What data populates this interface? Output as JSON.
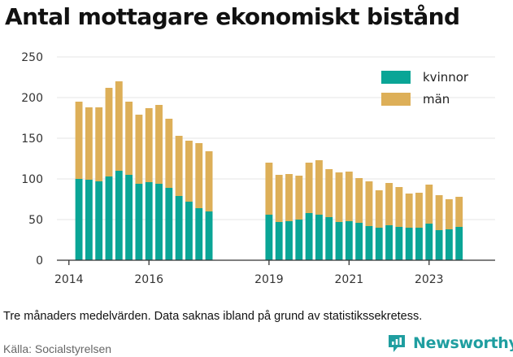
{
  "title": "Antal mottagare ekonomiskt bistånd",
  "note": "Tre månaders medelvärden. Data saknas ibland på grund av statistikssekretess.",
  "source": "Källa: Socialstyrelsen",
  "brand": "Newsworthy",
  "colors": {
    "kvinnor": "#0aa596",
    "man": "#ddaf58",
    "grid": "#e6e6e6",
    "axis": "#333333",
    "brand": "#1f9ea0"
  },
  "chart_data": {
    "type": "bar",
    "stacked": true,
    "x_tick_labels": [
      "2014",
      "2016",
      "2019",
      "2021",
      "2023"
    ],
    "x_tick_positions": [
      2014,
      2016,
      2019,
      2021,
      2023
    ],
    "y_ticks": [
      0,
      50,
      100,
      150,
      200,
      250
    ],
    "ylim": [
      0,
      250
    ],
    "xlim": [
      2013.7,
      2024.65
    ],
    "grid": true,
    "legend_position": "top-right",
    "series": [
      {
        "name": "kvinnor",
        "color": "#0aa596",
        "values": [
          100,
          99,
          97,
          103,
          110,
          105,
          94,
          96,
          94,
          89,
          79,
          72,
          64,
          60,
          56,
          47,
          48,
          50,
          58,
          56,
          53,
          47,
          48,
          46,
          42,
          40,
          43,
          41,
          40,
          40,
          45,
          37,
          38,
          41
        ]
      },
      {
        "name": "män",
        "color": "#ddaf58",
        "values": [
          95,
          89,
          91,
          109,
          110,
          90,
          85,
          91,
          97,
          85,
          74,
          75,
          80,
          74,
          64,
          58,
          58,
          54,
          62,
          67,
          59,
          61,
          61,
          55,
          55,
          46,
          52,
          49,
          42,
          43,
          48,
          43,
          37,
          37
        ]
      }
    ],
    "x": [
      2014.25,
      2014.5,
      2014.75,
      2015.0,
      2015.25,
      2015.5,
      2015.75,
      2016.0,
      2016.25,
      2016.5,
      2016.75,
      2017.0,
      2017.25,
      2017.5,
      2019.0,
      2019.25,
      2019.5,
      2019.75,
      2020.0,
      2020.25,
      2020.5,
      2020.75,
      2021.0,
      2021.25,
      2021.5,
      2021.75,
      2022.0,
      2022.25,
      2022.5,
      2022.75,
      2023.0,
      2023.25,
      2023.5,
      2023.75
    ]
  }
}
